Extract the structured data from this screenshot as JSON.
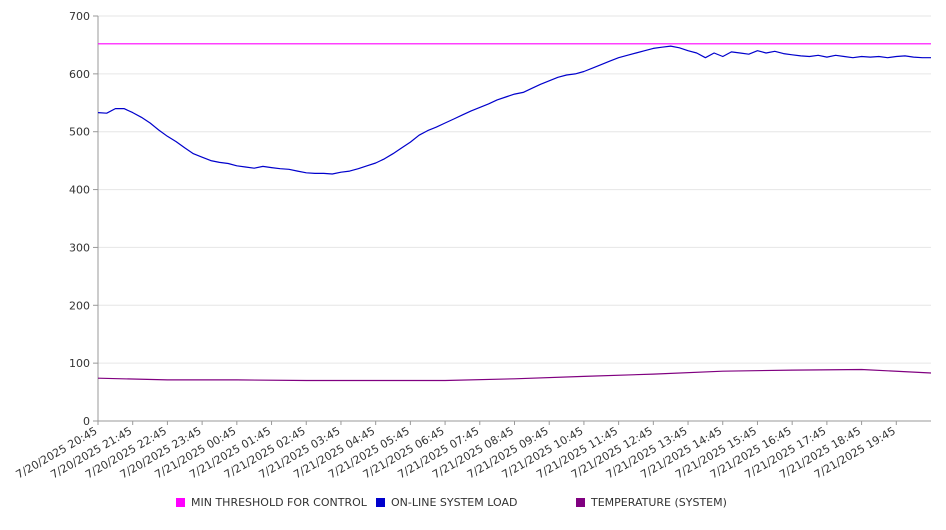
{
  "chart_data": {
    "type": "line",
    "title": "",
    "xlabel": "",
    "ylabel": "",
    "ylim": [
      0,
      700
    ],
    "yticks": [
      0,
      100,
      200,
      300,
      400,
      500,
      600,
      700
    ],
    "grid": true,
    "legend_position": "bottom",
    "x_start": "7/20/2025 20:45",
    "x_end": "7/21/2025 20:45",
    "xticks": [
      "7/20/2025 20:45",
      "7/20/2025 21:45",
      "7/20/2025 22:45",
      "7/20/2025 23:45",
      "7/21/2025 00:45",
      "7/21/2025 01:45",
      "7/21/2025 02:45",
      "7/21/2025 03:45",
      "7/21/2025 04:45",
      "7/21/2025 05:45",
      "7/21/2025 06:45",
      "7/21/2025 07:45",
      "7/21/2025 08:45",
      "7/21/2025 09:45",
      "7/21/2025 10:45",
      "7/21/2025 11:45",
      "7/21/2025 12:45",
      "7/21/2025 13:45",
      "7/21/2025 14:45",
      "7/21/2025 15:45",
      "7/21/2025 16:45",
      "7/21/2025 17:45",
      "7/21/2025 18:45",
      "7/21/2025 19:45"
    ],
    "series": [
      {
        "name": "MIN THRESHOLD FOR CONTROL",
        "color": "#ff00ff",
        "points": [
          [
            "7/20/2025 20:45",
            652
          ],
          [
            "7/21/2025 20:45",
            652
          ]
        ]
      },
      {
        "name": "ON-LINE SYSTEM LOAD",
        "color": "#0000cc",
        "points": [
          [
            "7/20/2025 20:45",
            533
          ],
          [
            "7/20/2025 21:00",
            532
          ],
          [
            "7/20/2025 21:15",
            540
          ],
          [
            "7/20/2025 21:30",
            540
          ],
          [
            "7/20/2025 21:45",
            533
          ],
          [
            "7/20/2025 22:00",
            525
          ],
          [
            "7/20/2025 22:15",
            515
          ],
          [
            "7/20/2025 22:30",
            503
          ],
          [
            "7/20/2025 22:45",
            492
          ],
          [
            "7/20/2025 23:00",
            483
          ],
          [
            "7/20/2025 23:15",
            472
          ],
          [
            "7/20/2025 23:30",
            462
          ],
          [
            "7/20/2025 23:45",
            456
          ],
          [
            "7/21/2025 00:00",
            450
          ],
          [
            "7/21/2025 00:15",
            447
          ],
          [
            "7/21/2025 00:30",
            445
          ],
          [
            "7/21/2025 00:45",
            441
          ],
          [
            "7/21/2025 01:00",
            439
          ],
          [
            "7/21/2025 01:15",
            437
          ],
          [
            "7/21/2025 01:30",
            440
          ],
          [
            "7/21/2025 01:45",
            438
          ],
          [
            "7/21/2025 02:00",
            436
          ],
          [
            "7/21/2025 02:15",
            435
          ],
          [
            "7/21/2025 02:30",
            432
          ],
          [
            "7/21/2025 02:45",
            429
          ],
          [
            "7/21/2025 03:00",
            428
          ],
          [
            "7/21/2025 03:15",
            428
          ],
          [
            "7/21/2025 03:30",
            427
          ],
          [
            "7/21/2025 03:45",
            430
          ],
          [
            "7/21/2025 04:00",
            432
          ],
          [
            "7/21/2025 04:15",
            436
          ],
          [
            "7/21/2025 04:30",
            441
          ],
          [
            "7/21/2025 04:45",
            446
          ],
          [
            "7/21/2025 05:00",
            453
          ],
          [
            "7/21/2025 05:15",
            462
          ],
          [
            "7/21/2025 05:30",
            472
          ],
          [
            "7/21/2025 05:45",
            482
          ],
          [
            "7/21/2025 06:00",
            494
          ],
          [
            "7/21/2025 06:15",
            502
          ],
          [
            "7/21/2025 06:30",
            508
          ],
          [
            "7/21/2025 06:45",
            515
          ],
          [
            "7/21/2025 07:00",
            522
          ],
          [
            "7/21/2025 07:15",
            529
          ],
          [
            "7/21/2025 07:30",
            536
          ],
          [
            "7/21/2025 07:45",
            542
          ],
          [
            "7/21/2025 08:00",
            548
          ],
          [
            "7/21/2025 08:15",
            555
          ],
          [
            "7/21/2025 08:30",
            560
          ],
          [
            "7/21/2025 08:45",
            565
          ],
          [
            "7/21/2025 09:00",
            568
          ],
          [
            "7/21/2025 09:15",
            575
          ],
          [
            "7/21/2025 09:30",
            582
          ],
          [
            "7/21/2025 09:45",
            588
          ],
          [
            "7/21/2025 10:00",
            594
          ],
          [
            "7/21/2025 10:15",
            598
          ],
          [
            "7/21/2025 10:30",
            600
          ],
          [
            "7/21/2025 10:45",
            604
          ],
          [
            "7/21/2025 11:00",
            610
          ],
          [
            "7/21/2025 11:15",
            616
          ],
          [
            "7/21/2025 11:30",
            622
          ],
          [
            "7/21/2025 11:45",
            628
          ],
          [
            "7/21/2025 12:00",
            632
          ],
          [
            "7/21/2025 12:15",
            636
          ],
          [
            "7/21/2025 12:30",
            640
          ],
          [
            "7/21/2025 12:45",
            644
          ],
          [
            "7/21/2025 13:00",
            646
          ],
          [
            "7/21/2025 13:15",
            648
          ],
          [
            "7/21/2025 13:30",
            645
          ],
          [
            "7/21/2025 13:45",
            640
          ],
          [
            "7/21/2025 14:00",
            636
          ],
          [
            "7/21/2025 14:15",
            628
          ],
          [
            "7/21/2025 14:30",
            636
          ],
          [
            "7/21/2025 14:45",
            630
          ],
          [
            "7/21/2025 15:00",
            638
          ],
          [
            "7/21/2025 15:15",
            636
          ],
          [
            "7/21/2025 15:30",
            634
          ],
          [
            "7/21/2025 15:45",
            640
          ],
          [
            "7/21/2025 16:00",
            636
          ],
          [
            "7/21/2025 16:15",
            639
          ],
          [
            "7/21/2025 16:30",
            635
          ],
          [
            "7/21/2025 16:45",
            633
          ],
          [
            "7/21/2025 17:00",
            631
          ],
          [
            "7/21/2025 17:15",
            630
          ],
          [
            "7/21/2025 17:30",
            632
          ],
          [
            "7/21/2025 17:45",
            629
          ],
          [
            "7/21/2025 18:00",
            632
          ],
          [
            "7/21/2025 18:15",
            630
          ],
          [
            "7/21/2025 18:30",
            628
          ],
          [
            "7/21/2025 18:45",
            630
          ],
          [
            "7/21/2025 19:00",
            629
          ],
          [
            "7/21/2025 19:15",
            630
          ],
          [
            "7/21/2025 19:30",
            628
          ],
          [
            "7/21/2025 19:45",
            630
          ],
          [
            "7/21/2025 20:00",
            631
          ],
          [
            "7/21/2025 20:15",
            629
          ],
          [
            "7/21/2025 20:30",
            628
          ],
          [
            "7/21/2025 20:45",
            628
          ]
        ]
      },
      {
        "name": "TEMPERATURE (SYSTEM)",
        "color": "#800080",
        "points": [
          [
            "7/20/2025 20:45",
            74
          ],
          [
            "7/20/2025 22:45",
            71
          ],
          [
            "7/21/2025 00:45",
            71
          ],
          [
            "7/21/2025 02:45",
            70
          ],
          [
            "7/21/2025 04:45",
            70
          ],
          [
            "7/21/2025 06:45",
            70
          ],
          [
            "7/21/2025 08:45",
            73
          ],
          [
            "7/21/2025 10:45",
            77
          ],
          [
            "7/21/2025 12:45",
            81
          ],
          [
            "7/21/2025 14:45",
            86
          ],
          [
            "7/21/2025 16:45",
            88
          ],
          [
            "7/21/2025 18:45",
            89
          ],
          [
            "7/21/2025 20:45",
            83
          ]
        ]
      }
    ]
  }
}
